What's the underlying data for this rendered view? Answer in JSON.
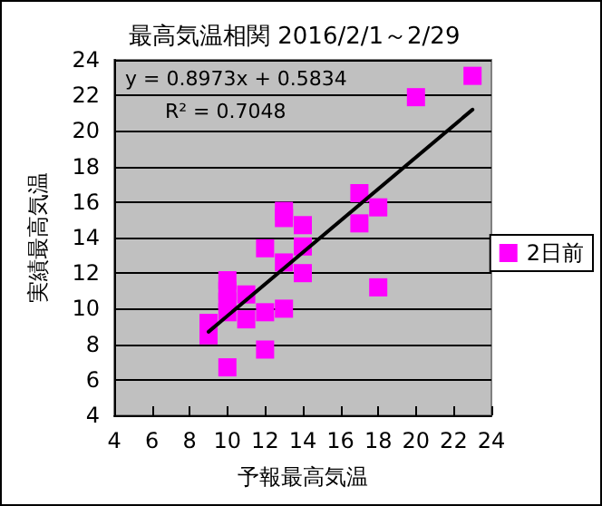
{
  "chart_data": {
    "type": "scatter",
    "title": "最高気温相関 2016/2/1～2/29",
    "xlabel": "予報最高気温",
    "ylabel": "実績最高気温",
    "annotations": [
      "y = 0.8973x + 0.5834",
      "R² = 0.7048"
    ],
    "series": [
      {
        "name": "2日前",
        "color": "#ff00ff",
        "marker": "square",
        "x": [
          9,
          9,
          10,
          10,
          10,
          10,
          10,
          11,
          11,
          12,
          12,
          12,
          13,
          13,
          13,
          13,
          14,
          14,
          14,
          17,
          17,
          18,
          18,
          20,
          23
        ],
        "values": [
          9.2,
          8.5,
          11.6,
          11,
          10.4,
          9.8,
          6.7,
          10.8,
          9.4,
          13.4,
          9.8,
          7.7,
          15.5,
          15.1,
          12.6,
          10,
          14.7,
          13.5,
          12,
          16.5,
          14.8,
          15.7,
          11.2,
          21.9,
          23.1
        ]
      },
      {
        "type": "line",
        "color": "#000000",
        "marker": "none",
        "line_style": "solid",
        "x": [
          9,
          23
        ],
        "values": [
          8.7,
          21.2
        ]
      }
    ],
    "xlim": [
      4,
      24
    ],
    "xticks": [
      4,
      6,
      8,
      10,
      12,
      14,
      16,
      18,
      20,
      22,
      24
    ],
    "ylim": [
      4,
      24
    ],
    "yticks": [
      4,
      6,
      8,
      10,
      12,
      14,
      16,
      18,
      20,
      22,
      24
    ],
    "grid": "y",
    "legend": "right"
  }
}
